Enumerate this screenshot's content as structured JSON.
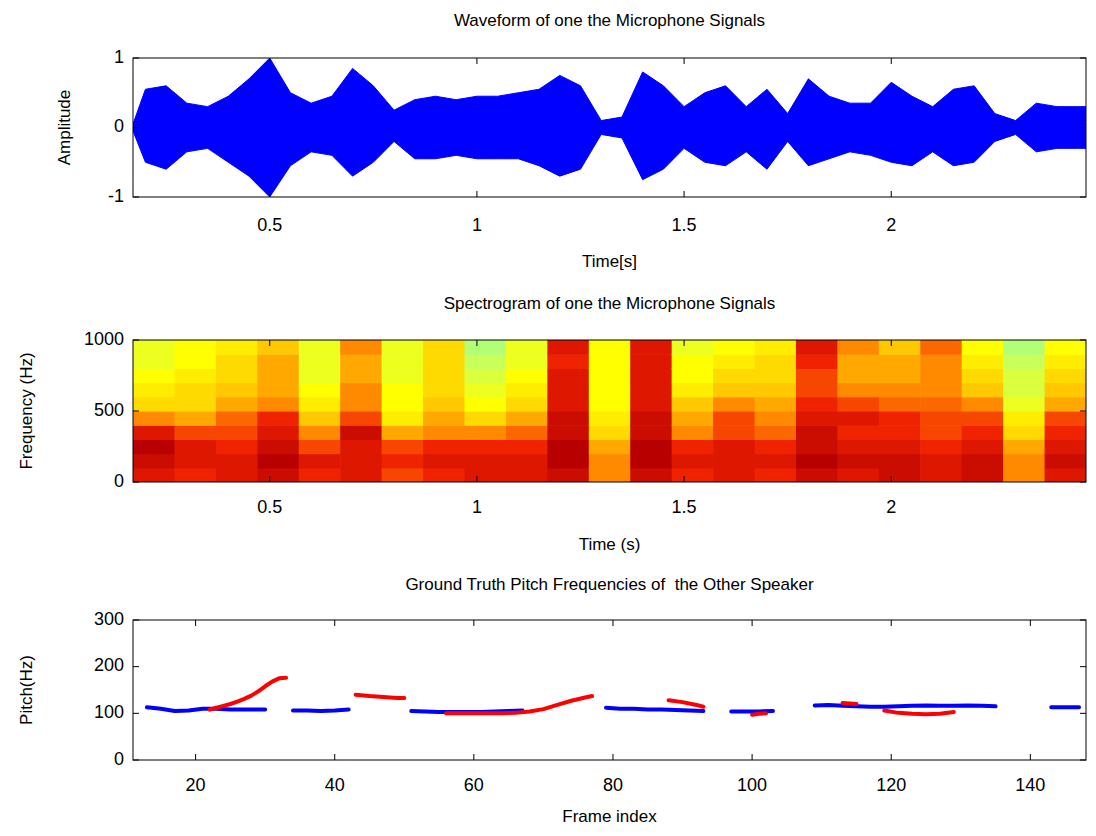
{
  "chart_data": [
    {
      "type": "area",
      "title": "Waveform of one the Microphone Signals",
      "xlabel": "Time[s]",
      "ylabel": "Amplitude",
      "color": "#0000ff",
      "grid": false,
      "xlim": [
        0.17,
        2.47
      ],
      "ylim": [
        -1,
        1
      ],
      "xticks": [
        0.5,
        1,
        1.5,
        2
      ],
      "yticks": [
        -1,
        0,
        1
      ],
      "x": [
        0.17,
        0.2,
        0.25,
        0.3,
        0.35,
        0.4,
        0.45,
        0.5,
        0.55,
        0.6,
        0.65,
        0.7,
        0.75,
        0.8,
        0.85,
        0.9,
        0.95,
        1.0,
        1.05,
        1.1,
        1.15,
        1.2,
        1.25,
        1.3,
        1.35,
        1.4,
        1.45,
        1.5,
        1.55,
        1.6,
        1.65,
        1.7,
        1.75,
        1.8,
        1.85,
        1.9,
        1.95,
        2.0,
        2.05,
        2.1,
        2.15,
        2.2,
        2.25,
        2.3,
        2.35,
        2.4,
        2.45,
        2.47
      ],
      "values": [
        0.05,
        0.55,
        0.6,
        0.35,
        0.3,
        0.45,
        0.7,
        1.0,
        0.5,
        0.35,
        0.45,
        0.85,
        0.6,
        0.25,
        0.4,
        0.45,
        0.4,
        0.45,
        0.45,
        0.5,
        0.55,
        0.75,
        0.6,
        0.1,
        0.15,
        0.8,
        0.6,
        0.3,
        0.5,
        0.6,
        0.3,
        0.55,
        0.2,
        0.7,
        0.45,
        0.35,
        0.35,
        0.65,
        0.45,
        0.3,
        0.55,
        0.6,
        0.2,
        0.1,
        0.35,
        0.3,
        0.3,
        0.3
      ],
      "lower": [
        -0.05,
        -0.5,
        -0.6,
        -0.35,
        -0.3,
        -0.5,
        -0.7,
        -1.0,
        -0.55,
        -0.35,
        -0.4,
        -0.7,
        -0.5,
        -0.2,
        -0.45,
        -0.45,
        -0.4,
        -0.45,
        -0.45,
        -0.45,
        -0.55,
        -0.7,
        -0.6,
        -0.1,
        -0.15,
        -0.75,
        -0.6,
        -0.3,
        -0.5,
        -0.55,
        -0.35,
        -0.6,
        -0.2,
        -0.55,
        -0.45,
        -0.35,
        -0.4,
        -0.5,
        -0.55,
        -0.35,
        -0.55,
        -0.5,
        -0.2,
        -0.1,
        -0.35,
        -0.3,
        -0.3,
        -0.3
      ]
    },
    {
      "type": "heatmap",
      "title": "Spectrogram of one the Microphone Signals",
      "xlabel": "Time (s)",
      "ylabel": "Frequency (Hz)",
      "grid": false,
      "xlim": [
        0.17,
        2.47
      ],
      "ylim": [
        0,
        1000
      ],
      "xticks": [
        0.5,
        1,
        1.5,
        2
      ],
      "yticks": [
        0,
        500,
        1000
      ],
      "x": [
        0.22,
        0.32,
        0.42,
        0.52,
        0.62,
        0.72,
        0.82,
        0.92,
        1.02,
        1.12,
        1.22,
        1.32,
        1.42,
        1.52,
        1.62,
        1.72,
        1.82,
        1.92,
        2.02,
        2.12,
        2.22,
        2.32,
        2.42
      ],
      "y": [
        50,
        150,
        250,
        350,
        450,
        550,
        650,
        750,
        850,
        950
      ],
      "cells": [
        [
          0.8,
          0.85,
          0.9,
          0.8,
          0.6,
          0.45,
          0.4,
          0.35,
          0.3,
          0.3
        ],
        [
          0.75,
          0.8,
          0.8,
          0.7,
          0.55,
          0.45,
          0.45,
          0.4,
          0.35,
          0.35
        ],
        [
          0.8,
          0.8,
          0.75,
          0.7,
          0.65,
          0.55,
          0.5,
          0.45,
          0.45,
          0.4
        ],
        [
          0.85,
          0.9,
          0.85,
          0.8,
          0.75,
          0.6,
          0.55,
          0.55,
          0.55,
          0.5
        ],
        [
          0.75,
          0.8,
          0.7,
          0.6,
          0.5,
          0.4,
          0.35,
          0.3,
          0.3,
          0.3
        ],
        [
          0.8,
          0.8,
          0.8,
          0.85,
          0.7,
          0.6,
          0.6,
          0.55,
          0.55,
          0.6
        ],
        [
          0.7,
          0.75,
          0.7,
          0.55,
          0.4,
          0.35,
          0.35,
          0.3,
          0.3,
          0.3
        ],
        [
          0.75,
          0.8,
          0.75,
          0.6,
          0.55,
          0.5,
          0.45,
          0.45,
          0.45,
          0.45
        ],
        [
          0.8,
          0.8,
          0.75,
          0.6,
          0.45,
          0.35,
          0.3,
          0.25,
          0.2,
          0.15
        ],
        [
          0.8,
          0.8,
          0.75,
          0.65,
          0.55,
          0.45,
          0.4,
          0.35,
          0.3,
          0.3
        ],
        [
          0.85,
          0.9,
          0.9,
          0.85,
          0.85,
          0.8,
          0.8,
          0.8,
          0.75,
          0.8
        ],
        [
          0.6,
          0.6,
          0.55,
          0.45,
          0.4,
          0.35,
          0.35,
          0.35,
          0.35,
          0.35
        ],
        [
          0.85,
          0.9,
          0.9,
          0.85,
          0.85,
          0.8,
          0.8,
          0.8,
          0.8,
          0.8
        ],
        [
          0.75,
          0.8,
          0.75,
          0.6,
          0.55,
          0.5,
          0.4,
          0.35,
          0.35,
          0.3
        ],
        [
          0.8,
          0.8,
          0.8,
          0.7,
          0.7,
          0.6,
          0.5,
          0.45,
          0.4,
          0.35
        ],
        [
          0.75,
          0.8,
          0.75,
          0.65,
          0.6,
          0.55,
          0.5,
          0.45,
          0.45,
          0.4
        ],
        [
          0.85,
          0.9,
          0.85,
          0.85,
          0.8,
          0.75,
          0.7,
          0.7,
          0.75,
          0.8
        ],
        [
          0.8,
          0.85,
          0.8,
          0.75,
          0.8,
          0.7,
          0.6,
          0.55,
          0.55,
          0.6
        ],
        [
          0.85,
          0.85,
          0.8,
          0.75,
          0.75,
          0.65,
          0.6,
          0.55,
          0.55,
          0.5
        ],
        [
          0.8,
          0.8,
          0.75,
          0.7,
          0.7,
          0.65,
          0.6,
          0.6,
          0.6,
          0.65
        ],
        [
          0.85,
          0.85,
          0.8,
          0.75,
          0.7,
          0.6,
          0.5,
          0.45,
          0.4,
          0.35
        ],
        [
          0.6,
          0.6,
          0.55,
          0.45,
          0.4,
          0.3,
          0.25,
          0.25,
          0.2,
          0.15
        ],
        [
          0.8,
          0.85,
          0.8,
          0.75,
          0.7,
          0.55,
          0.5,
          0.45,
          0.4,
          0.35
        ]
      ]
    },
    {
      "type": "line",
      "title": "Ground Truth Pitch Frequencies of  the Other Speaker",
      "xlabel": "Frame index",
      "ylabel": "Pitch(Hz)",
      "grid": false,
      "xlim": [
        11,
        148
      ],
      "ylim": [
        0,
        300
      ],
      "xticks": [
        20,
        40,
        60,
        80,
        100,
        120,
        140
      ],
      "yticks": [
        0,
        100,
        200,
        300
      ],
      "series": [
        {
          "color": "#0000ff",
          "line_style": "solid",
          "x": [
            13,
            15,
            17,
            19,
            21,
            23,
            25,
            27,
            29,
            30,
            31,
            34,
            36,
            38,
            40,
            42,
            43,
            51,
            53,
            55,
            57,
            59,
            61,
            63,
            65,
            67,
            69,
            79,
            81,
            83,
            85,
            87,
            89,
            91,
            93,
            94,
            97,
            99,
            101,
            103,
            104,
            109,
            111,
            113,
            115,
            117,
            119,
            121,
            123,
            125,
            127,
            129,
            131,
            133,
            135,
            136,
            143,
            145,
            147
          ],
          "values": [
            113,
            110,
            105,
            106,
            110,
            110,
            108,
            108,
            108,
            108,
            null,
            106,
            106,
            105,
            106,
            108,
            null,
            105,
            104,
            103,
            103,
            103,
            103,
            104,
            105,
            106,
            null,
            112,
            110,
            110,
            108,
            108,
            107,
            106,
            105,
            null,
            104,
            104,
            104,
            105,
            null,
            117,
            118,
            116,
            115,
            114,
            114,
            115,
            116,
            117,
            116,
            116,
            117,
            116,
            115,
            null,
            113,
            113,
            113
          ]
        },
        {
          "color": "#ff0000",
          "line_style": "solid",
          "x": [
            22,
            23,
            24,
            25,
            26,
            27,
            28,
            29,
            30,
            31,
            32,
            33,
            34,
            43,
            45,
            47,
            49,
            50,
            51,
            56,
            58,
            60,
            62,
            64,
            66,
            68,
            70,
            72,
            74,
            76,
            77,
            78,
            88,
            90,
            92,
            93,
            94,
            100,
            101,
            102,
            103,
            113,
            114,
            115,
            116,
            119,
            121,
            123,
            125,
            127,
            129
          ],
          "values": [
            108,
            112,
            116,
            120,
            125,
            131,
            138,
            147,
            158,
            168,
            175,
            176,
            null,
            140,
            137,
            135,
            133,
            133,
            null,
            100,
            100,
            100,
            100,
            100,
            101,
            104,
            109,
            118,
            127,
            134,
            137,
            null,
            128,
            124,
            118,
            114,
            null,
            97,
            99,
            100,
            null,
            122,
            121,
            120,
            null,
            106,
            101,
            99,
            98,
            99,
            103
          ]
        }
      ]
    }
  ]
}
